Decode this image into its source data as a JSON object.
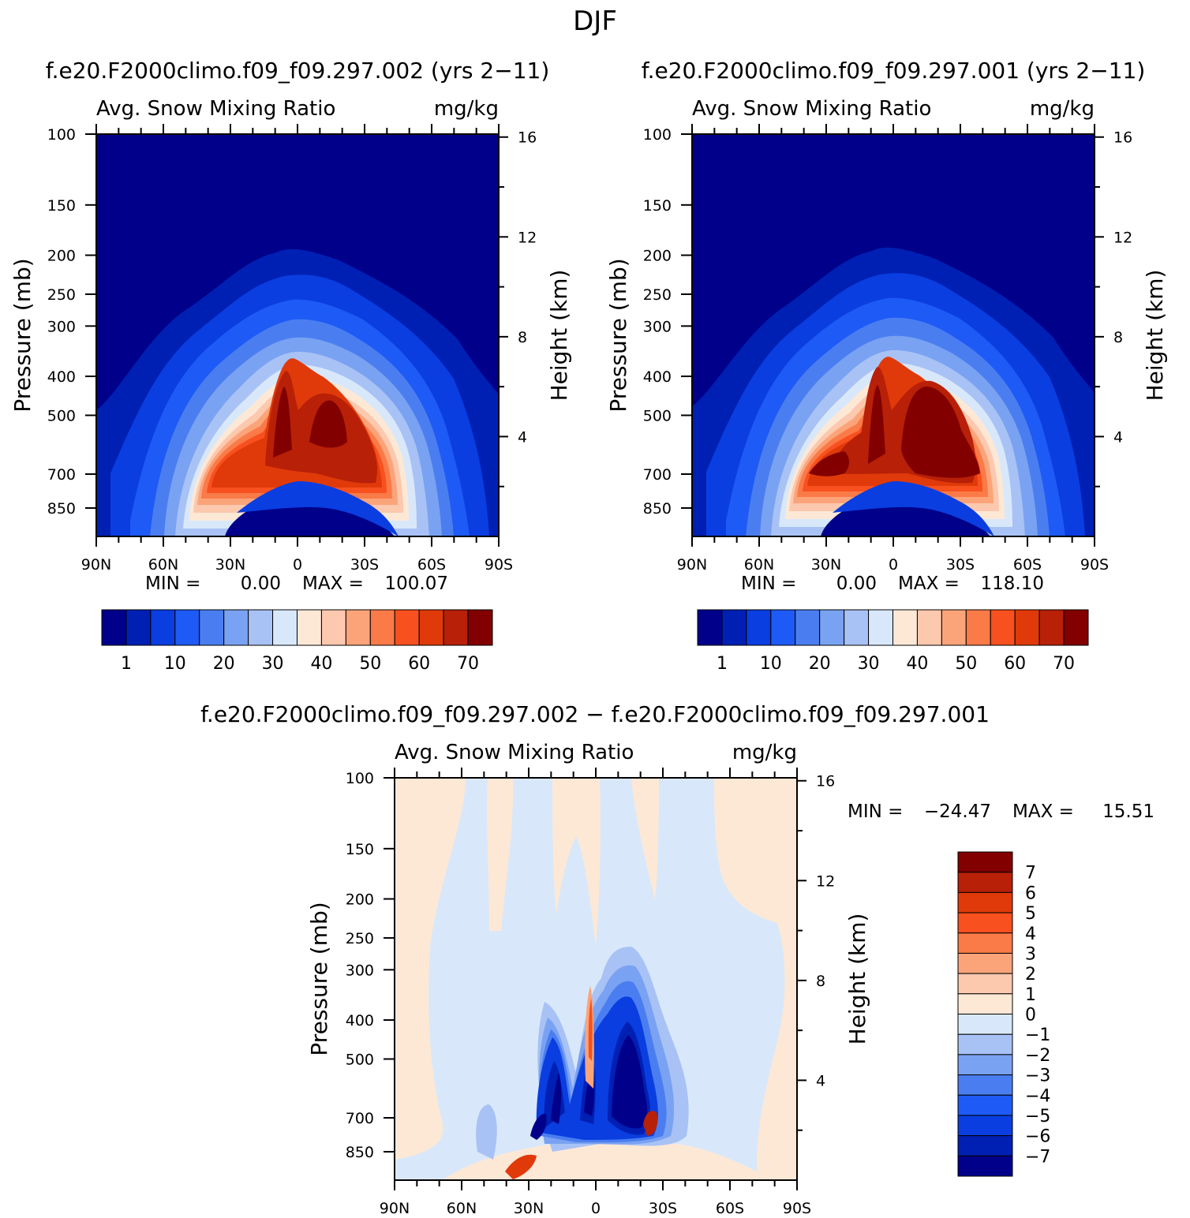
{
  "figure_title": "DJF",
  "palette": {
    "abs": [
      "#00008a",
      "#0020b4",
      "#0a3ee0",
      "#1e5af5",
      "#4a7ef0",
      "#7aa2f2",
      "#a8c2f5",
      "#d8e8fa",
      "#fde8d6",
      "#fcc8ae",
      "#fba47a",
      "#fa7a48",
      "#f8501e",
      "#e03a0a",
      "#b82008",
      "#820000"
    ],
    "diff": [
      "#00008a",
      "#0020b4",
      "#0a3ee0",
      "#1e5af5",
      "#4a7ef0",
      "#7aa2f2",
      "#a8c2f5",
      "#d8e8fa",
      "#fde8d6",
      "#fcc8ae",
      "#fba47a",
      "#fa7a48",
      "#f8501e",
      "#e03a0a",
      "#b82008",
      "#820000"
    ]
  },
  "chart_data": [
    {
      "type": "heatmap",
      "panel": "top-left",
      "case_title": "f.e20.F2000climo.f09_f09.297.002 (yrs 2−11)",
      "variable": "Avg. Snow Mixing Ratio",
      "units": "mg/kg",
      "ylabel": "Pressure (mb)",
      "y2label": "Height (km)",
      "x_ticks": [
        "90N",
        "60N",
        "30N",
        "0",
        "30S",
        "60S",
        "90S"
      ],
      "y_ticks": [
        "100",
        "150",
        "200",
        "250",
        "300",
        "400",
        "500",
        "700",
        "850"
      ],
      "y_pressure": [
        100,
        150,
        200,
        250,
        300,
        400,
        500,
        700,
        850
      ],
      "y2_ticks": [
        "16",
        "12",
        "8",
        "4"
      ],
      "y2_values": [
        16,
        12,
        8,
        4
      ],
      "xlim": [
        90,
        -90
      ],
      "ylim": [
        100,
        1000
      ],
      "min_label": "MIN =",
      "min_value": "0.00",
      "max_label": "MAX =",
      "max_value": "100.07",
      "contour_levels": [
        1,
        5,
        10,
        15,
        20,
        25,
        30,
        35,
        40,
        45,
        50,
        55,
        60,
        65,
        70
      ],
      "colorbar_labels": [
        "1",
        "10",
        "20",
        "30",
        "40",
        "50",
        "60",
        "70"
      ],
      "colorbar_label_index": [
        1,
        3,
        5,
        7,
        9,
        11,
        13,
        15
      ]
    },
    {
      "type": "heatmap",
      "panel": "top-right",
      "case_title": "f.e20.F2000climo.f09_f09.297.001 (yrs 2−11)",
      "variable": "Avg. Snow Mixing Ratio",
      "units": "mg/kg",
      "ylabel": "Pressure (mb)",
      "y2label": "Height (km)",
      "x_ticks": [
        "90N",
        "60N",
        "30N",
        "0",
        "30S",
        "60S",
        "90S"
      ],
      "y_ticks": [
        "100",
        "150",
        "200",
        "250",
        "300",
        "400",
        "500",
        "700",
        "850"
      ],
      "y_pressure": [
        100,
        150,
        200,
        250,
        300,
        400,
        500,
        700,
        850
      ],
      "y2_ticks": [
        "16",
        "12",
        "8",
        "4"
      ],
      "y2_values": [
        16,
        12,
        8,
        4
      ],
      "xlim": [
        90,
        -90
      ],
      "ylim": [
        100,
        1000
      ],
      "min_label": "MIN =",
      "min_value": "0.00",
      "max_label": "MAX =",
      "max_value": "118.10",
      "contour_levels": [
        1,
        5,
        10,
        15,
        20,
        25,
        30,
        35,
        40,
        45,
        50,
        55,
        60,
        65,
        70
      ],
      "colorbar_labels": [
        "1",
        "10",
        "20",
        "30",
        "40",
        "50",
        "60",
        "70"
      ],
      "colorbar_label_index": [
        1,
        3,
        5,
        7,
        9,
        11,
        13,
        15
      ]
    },
    {
      "type": "heatmap",
      "panel": "bottom-difference",
      "case_title": "f.e20.F2000climo.f09_f09.297.002 − f.e20.F2000climo.f09_f09.297.001",
      "variable": "Avg. Snow Mixing Ratio",
      "units": "mg/kg",
      "ylabel": "Pressure (mb)",
      "y2label": "Height (km)",
      "x_ticks": [
        "90N",
        "60N",
        "30N",
        "0",
        "30S",
        "60S",
        "90S"
      ],
      "y_ticks": [
        "100",
        "150",
        "200",
        "250",
        "300",
        "400",
        "500",
        "700",
        "850"
      ],
      "y_pressure": [
        100,
        150,
        200,
        250,
        300,
        400,
        500,
        700,
        850
      ],
      "y2_ticks": [
        "16",
        "12",
        "8",
        "4"
      ],
      "y2_values": [
        16,
        12,
        8,
        4
      ],
      "xlim": [
        90,
        -90
      ],
      "ylim": [
        100,
        1000
      ],
      "min_label": "MIN =",
      "min_value": "−24.47",
      "max_label": "MAX =",
      "max_value": "15.51",
      "contour_levels": [
        -7,
        -6,
        -5,
        -4,
        -3,
        -2,
        -1,
        0,
        1,
        2,
        3,
        4,
        5,
        6,
        7
      ],
      "colorbar_labels": [
        "7",
        "6",
        "5",
        "4",
        "3",
        "2",
        "1",
        "0",
        "−1",
        "−2",
        "−3",
        "−4",
        "−5",
        "−6",
        "−7"
      ]
    }
  ]
}
